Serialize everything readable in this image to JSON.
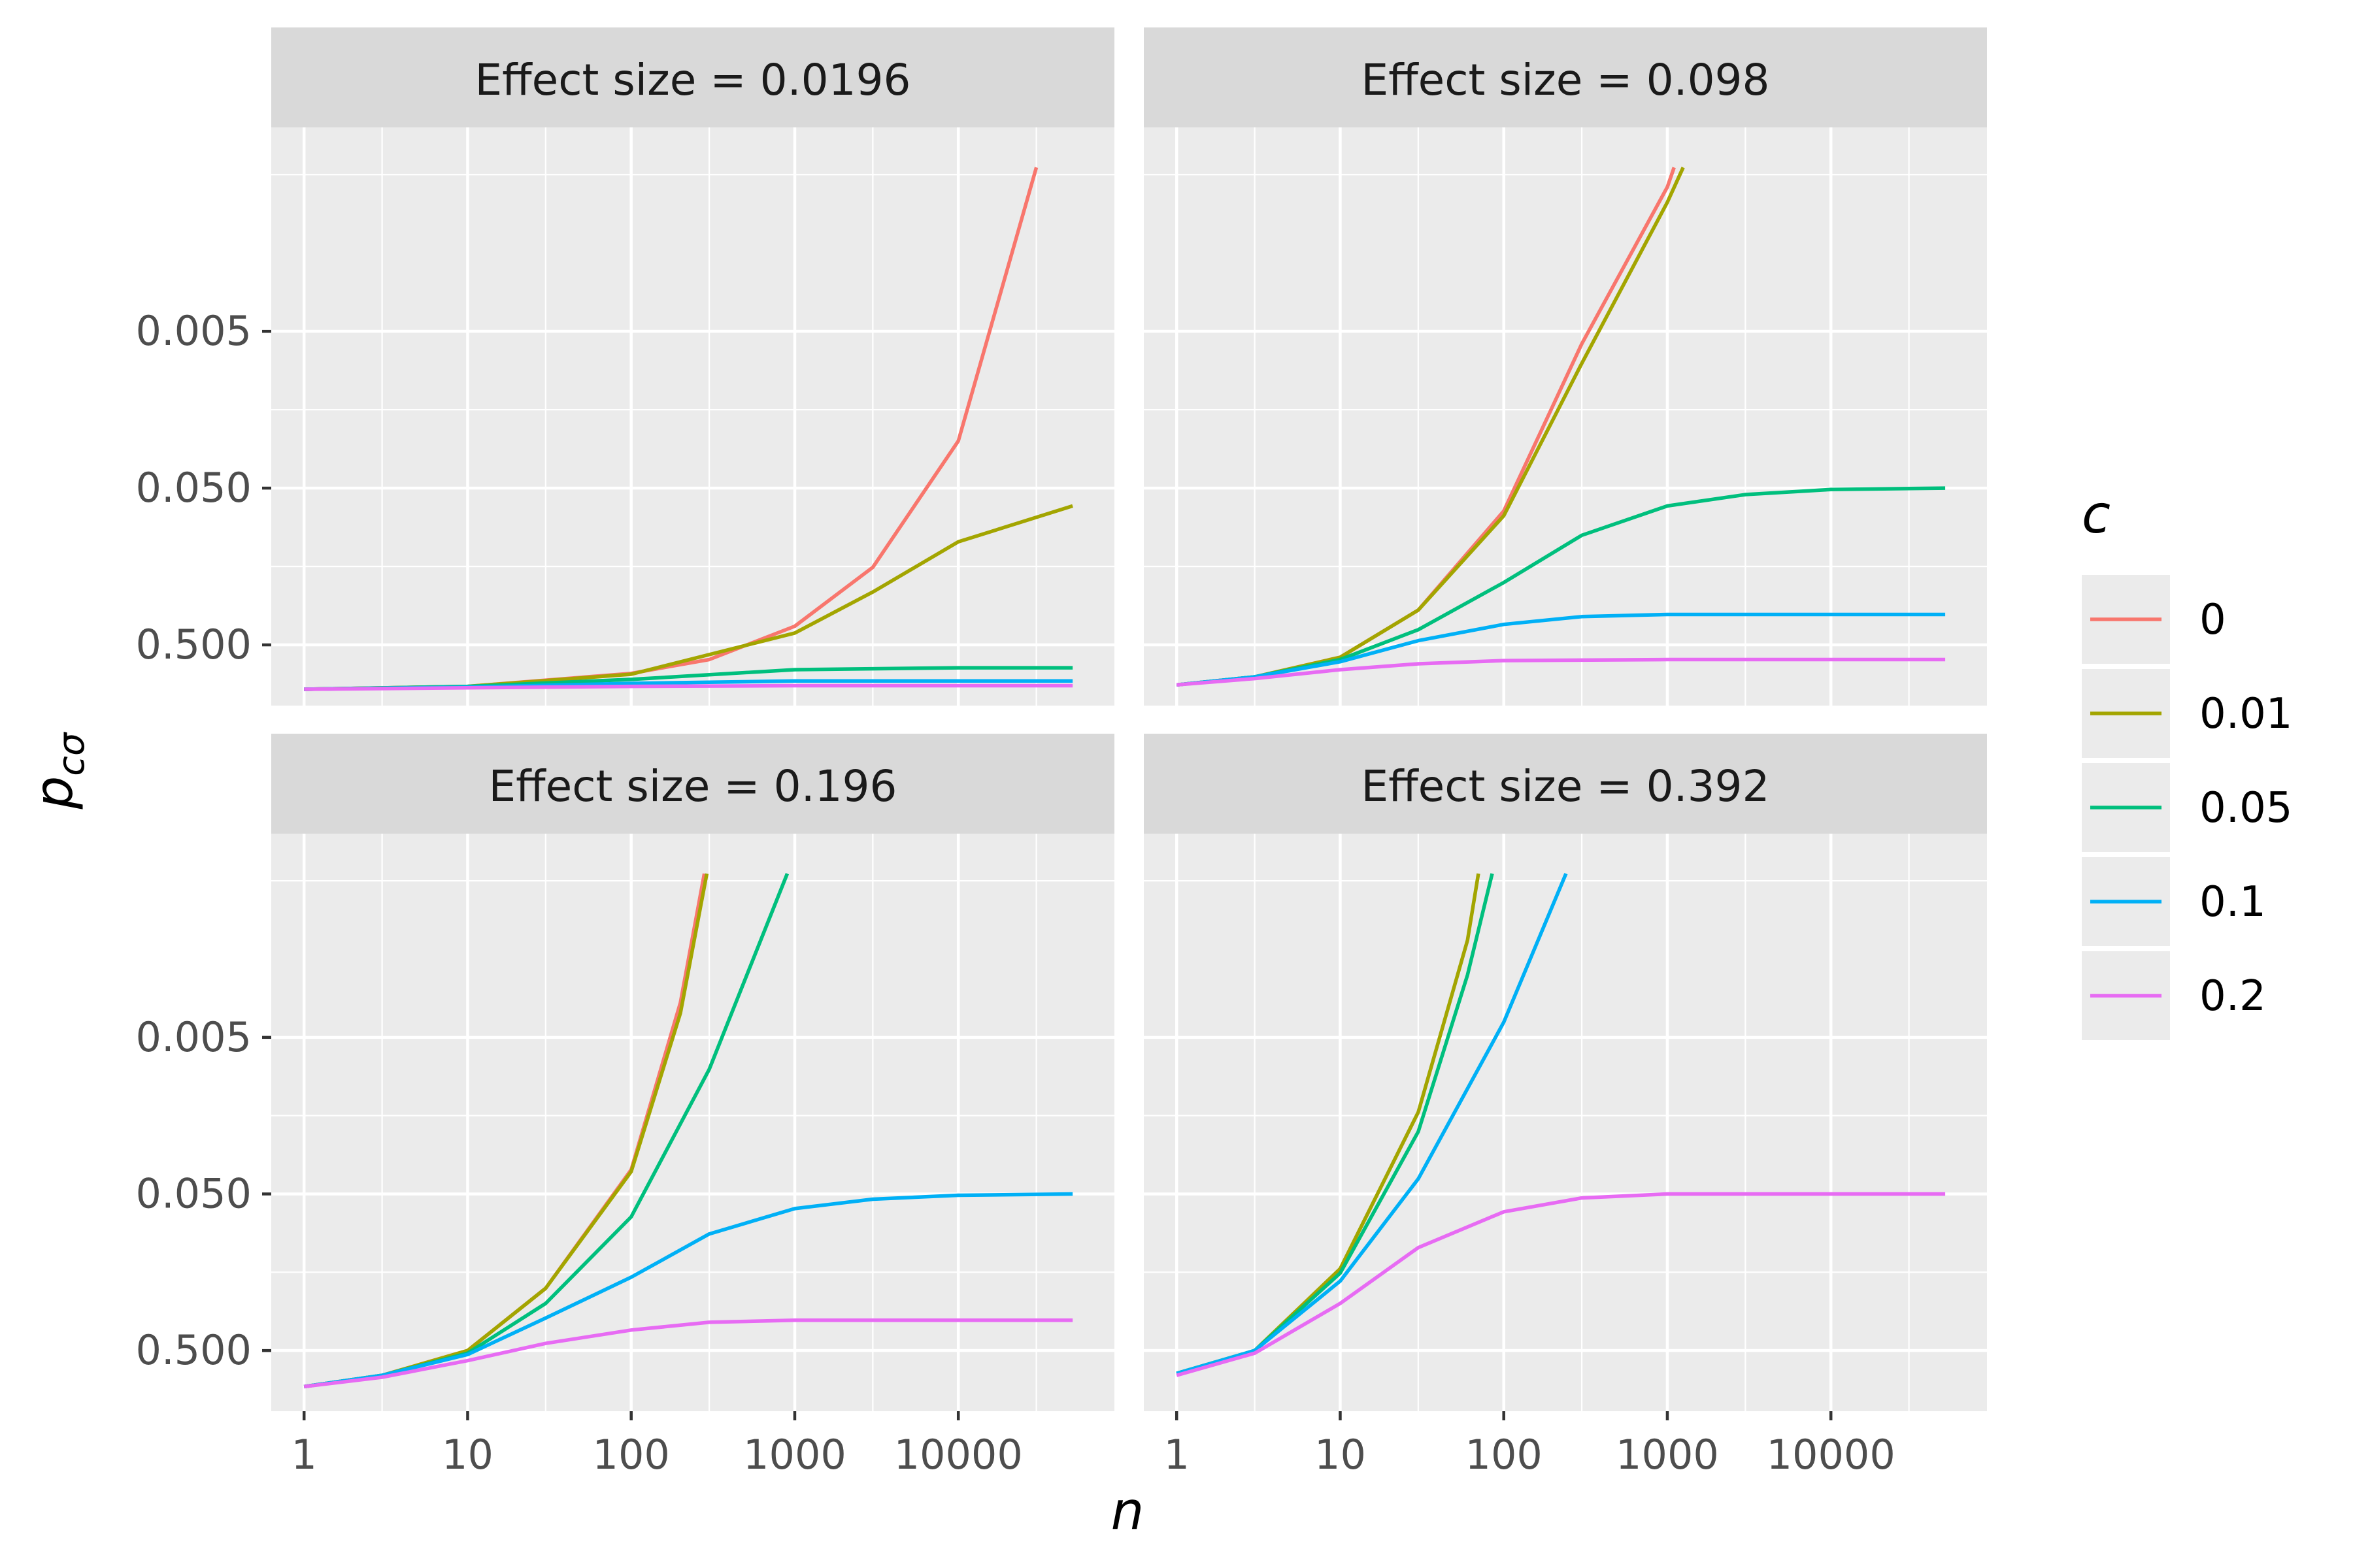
{
  "chart_data": {
    "type": "line",
    "xlabel": "n",
    "ylabel": {
      "main": "p",
      "sub": "cσ"
    },
    "x_scale": "log10",
    "y_scale": "reverse-log10",
    "xlim": [
      1,
      50000
    ],
    "ylim": [
      0.0003,
      1.1
    ],
    "x_ticks": [
      1,
      10,
      100,
      1000,
      10000
    ],
    "x_tick_labels": [
      "1",
      "10",
      "100",
      "1000",
      "10000"
    ],
    "y_ticks": [
      0.005,
      0.05,
      0.5
    ],
    "y_tick_labels": [
      "0.005",
      "0.050",
      "0.500"
    ],
    "grid": true,
    "legend": {
      "title": "c",
      "placement": "right",
      "entries": [
        {
          "label": "0",
          "color": "#F8766D"
        },
        {
          "label": "0.01",
          "color": "#A3A500"
        },
        {
          "label": "0.05",
          "color": "#00BF7D"
        },
        {
          "label": "0.1",
          "color": "#00B0F6"
        },
        {
          "label": "0.2",
          "color": "#E76BF3"
        }
      ]
    },
    "panels": [
      {
        "strip": "Effect size = 0.0196",
        "series": [
          {
            "name": "0",
            "x": [
              1,
              10,
              100,
              300,
              1000,
              3000,
              10000,
              30000
            ],
            "y": [
              0.96,
              0.92,
              0.76,
              0.62,
              0.38,
              0.16,
              0.025,
              0.00045
            ]
          },
          {
            "name": "0.01",
            "x": [
              1,
              10,
              100,
              1000,
              3000,
              10000,
              50000
            ],
            "y": [
              0.96,
              0.92,
              0.77,
              0.42,
              0.23,
              0.11,
              0.065
            ]
          },
          {
            "name": "0.05",
            "x": [
              1,
              10,
              100,
              1000,
              10000,
              50000
            ],
            "y": [
              0.96,
              0.92,
              0.83,
              0.72,
              0.7,
              0.7
            ]
          },
          {
            "name": "0.1",
            "x": [
              1,
              10,
              100,
              1000,
              10000,
              50000
            ],
            "y": [
              0.96,
              0.93,
              0.88,
              0.85,
              0.85,
              0.85
            ]
          },
          {
            "name": "0.2",
            "x": [
              1,
              10,
              100,
              1000,
              10000,
              50000
            ],
            "y": [
              0.96,
              0.94,
              0.92,
              0.91,
              0.91,
              0.91
            ]
          }
        ]
      },
      {
        "strip": "Effect size = 0.098",
        "series": [
          {
            "name": "0",
            "x": [
              1,
              3,
              10,
              30,
              100,
              300,
              1000,
              1100
            ],
            "y": [
              0.9,
              0.8,
              0.6,
              0.3,
              0.07,
              0.006,
              0.0006,
              0.00045
            ]
          },
          {
            "name": "0.01",
            "x": [
              1,
              3,
              10,
              30,
              100,
              300,
              1000,
              1250
            ],
            "y": [
              0.9,
              0.8,
              0.6,
              0.3,
              0.075,
              0.008,
              0.00075,
              0.00045
            ]
          },
          {
            "name": "0.05",
            "x": [
              1,
              3,
              10,
              30,
              100,
              300,
              1000,
              3000,
              10000,
              50000
            ],
            "y": [
              0.9,
              0.8,
              0.62,
              0.4,
              0.2,
              0.1,
              0.065,
              0.055,
              0.051,
              0.05
            ]
          },
          {
            "name": "0.1",
            "x": [
              1,
              3,
              10,
              30,
              100,
              300,
              1000,
              10000,
              50000
            ],
            "y": [
              0.9,
              0.8,
              0.64,
              0.47,
              0.37,
              0.33,
              0.32,
              0.32,
              0.32
            ]
          },
          {
            "name": "0.2",
            "x": [
              1,
              3,
              10,
              30,
              100,
              1000,
              10000,
              50000
            ],
            "y": [
              0.9,
              0.82,
              0.72,
              0.66,
              0.63,
              0.62,
              0.62,
              0.62
            ]
          }
        ]
      },
      {
        "strip": "Effect size = 0.196",
        "series": [
          {
            "name": "0",
            "x": [
              1,
              3,
              10,
              30,
              100,
              200,
              280
            ],
            "y": [
              0.85,
              0.72,
              0.5,
              0.2,
              0.035,
              0.003,
              0.00045
            ]
          },
          {
            "name": "0.01",
            "x": [
              1,
              3,
              10,
              30,
              100,
              200,
              290
            ],
            "y": [
              0.85,
              0.72,
              0.5,
              0.2,
              0.036,
              0.0035,
              0.00045
            ]
          },
          {
            "name": "0.05",
            "x": [
              1,
              3,
              10,
              30,
              100,
              300,
              900
            ],
            "y": [
              0.85,
              0.72,
              0.52,
              0.25,
              0.07,
              0.008,
              0.00045
            ]
          },
          {
            "name": "0.1",
            "x": [
              1,
              3,
              10,
              30,
              100,
              300,
              1000,
              3000,
              10000,
              50000
            ],
            "y": [
              0.85,
              0.72,
              0.53,
              0.31,
              0.17,
              0.09,
              0.062,
              0.054,
              0.051,
              0.05
            ]
          },
          {
            "name": "0.2",
            "x": [
              1,
              3,
              10,
              30,
              100,
              300,
              1000,
              10000,
              50000
            ],
            "y": [
              0.85,
              0.74,
              0.58,
              0.45,
              0.37,
              0.33,
              0.32,
              0.32,
              0.32
            ]
          }
        ]
      },
      {
        "strip": "Effect size = 0.392",
        "series": [
          {
            "name": "0.01",
            "x": [
              1,
              3,
              10,
              30,
              60,
              70
            ],
            "y": [
              0.7,
              0.5,
              0.15,
              0.015,
              0.0012,
              0.00045
            ]
          },
          {
            "name": "0.05",
            "x": [
              1,
              3,
              10,
              30,
              60,
              85
            ],
            "y": [
              0.7,
              0.5,
              0.16,
              0.02,
              0.002,
              0.00045
            ]
          },
          {
            "name": "0.1",
            "x": [
              1,
              3,
              10,
              30,
              100,
              240
            ],
            "y": [
              0.7,
              0.5,
              0.18,
              0.04,
              0.004,
              0.00045
            ]
          },
          {
            "name": "0.2",
            "x": [
              1,
              3,
              10,
              30,
              100,
              300,
              1000,
              3000,
              10000,
              50000
            ],
            "y": [
              0.72,
              0.52,
              0.25,
              0.11,
              0.065,
              0.053,
              0.05,
              0.05,
              0.05,
              0.05
            ]
          }
        ]
      }
    ]
  }
}
